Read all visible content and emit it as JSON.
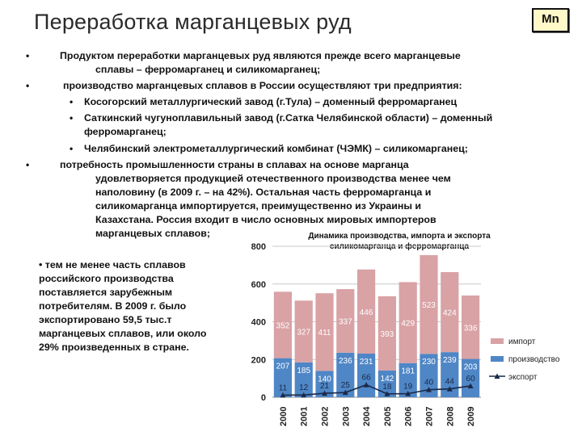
{
  "title": "Переработка марганцевых руд",
  "badge": "Mn",
  "bullets": {
    "b1_line1": "Продуктом переработки марганцевых руд являются прежде всего марганцевые",
    "b1_line2": "сплавы – ферромарганец и силикомарганец;",
    "b2_line1": "производство марганцевых сплавов в России осуществляют три предприятия:",
    "sub1": "Косогорский металлургический завод (г.Тула) – доменный ферромарганец",
    "sub2_line1": "Саткинский чугуноплавильный завод (г.Сатка Челябинской области) – доменный",
    "sub2_line2": "ферромарганец;",
    "sub3": "Челябинский электрометаллургический комбинат (ЧЭМК) – силикомарганец;",
    "b3_line1": "потребность промышленности страны в сплавах на основе марганца",
    "b3_line2": "удовлетворяется продукцией отечественного производства менее чем",
    "b3_line3": "наполовину (в 2009 г. – на 42%). Остальная часть ферромарганца и",
    "b3_line4": "силикомарганца импортируется, преимущественно из Украины и",
    "b3_line5": "Казахстана. Россия входит в число основных мировых импортеров",
    "b3_line6": "марганцевых сплавов;",
    "b4_line1": "•  тем не менее часть сплавов",
    "b4_line2": "российского производства",
    "b4_line3": "поставляется зарубежным",
    "b4_line4": "потребителям. В 2009 г. было",
    "b4_line5": "экспортировано 59,5 тыс.т",
    "b4_line6": "марганцевых сплавов, или около",
    "b4_line7": "29% произведенных в стране."
  },
  "chart_data": {
    "type": "bar",
    "title_line1": "Динамика производства, импорта и экспорта",
    "title_line2": "силикомарганца и ферромарганца",
    "categories": [
      "2000",
      "2001",
      "2002",
      "2003",
      "2004",
      "2005",
      "2006",
      "2007",
      "2008",
      "2009"
    ],
    "ylim": [
      0,
      800
    ],
    "yticks": [
      0,
      200,
      400,
      600,
      800
    ],
    "series": [
      {
        "name": "импорт",
        "kind": "stacked-bar",
        "color": "#d9a2a5",
        "values": [
          352,
          327,
          411,
          337,
          446,
          393,
          429,
          523,
          424,
          336
        ]
      },
      {
        "name": "производство",
        "kind": "stacked-bar",
        "color": "#4f86c6",
        "values": [
          207,
          185,
          140,
          236,
          231,
          142,
          181,
          230,
          239,
          203
        ]
      },
      {
        "name": "экспорт",
        "kind": "line",
        "color": "#1a2a48",
        "values": [
          11,
          12,
          21,
          25,
          66,
          18,
          19,
          40,
          44,
          60
        ]
      }
    ]
  }
}
